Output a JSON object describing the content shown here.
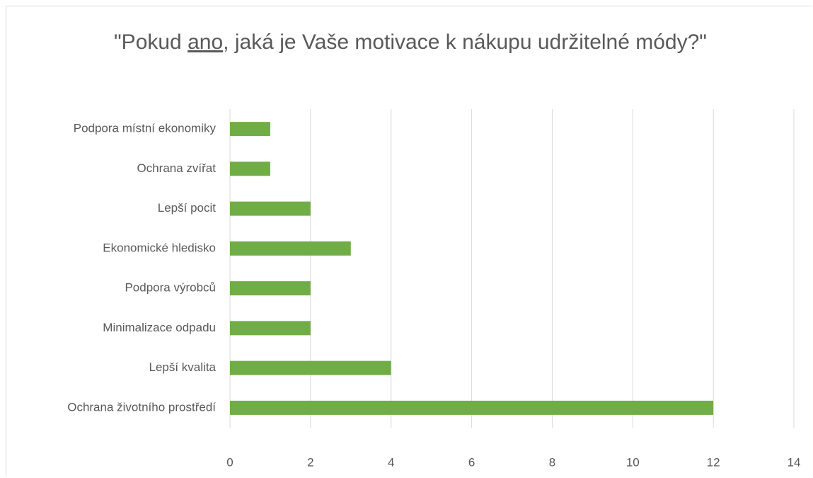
{
  "chart_data": {
    "type": "bar",
    "orientation": "horizontal",
    "title": "\"Pokud ano, jaká je Vaše motivace k nákupu udržitelné módy?\"",
    "categories": [
      "Podpora místní ekonomiky",
      "Ochrana zvířat",
      "Lepší pocit",
      "Ekonomické hledisko",
      "Podpora výrobců",
      "Minimalizace odpadu",
      "Lepší kvalita",
      "Ochrana životního prostředí"
    ],
    "values": [
      1,
      1,
      2,
      3,
      2,
      2,
      4,
      12
    ],
    "color": "#70ad47",
    "xlim": [
      0,
      14
    ],
    "xticks": [
      0,
      2,
      4,
      6,
      8,
      10,
      12,
      14
    ],
    "grid": true
  }
}
